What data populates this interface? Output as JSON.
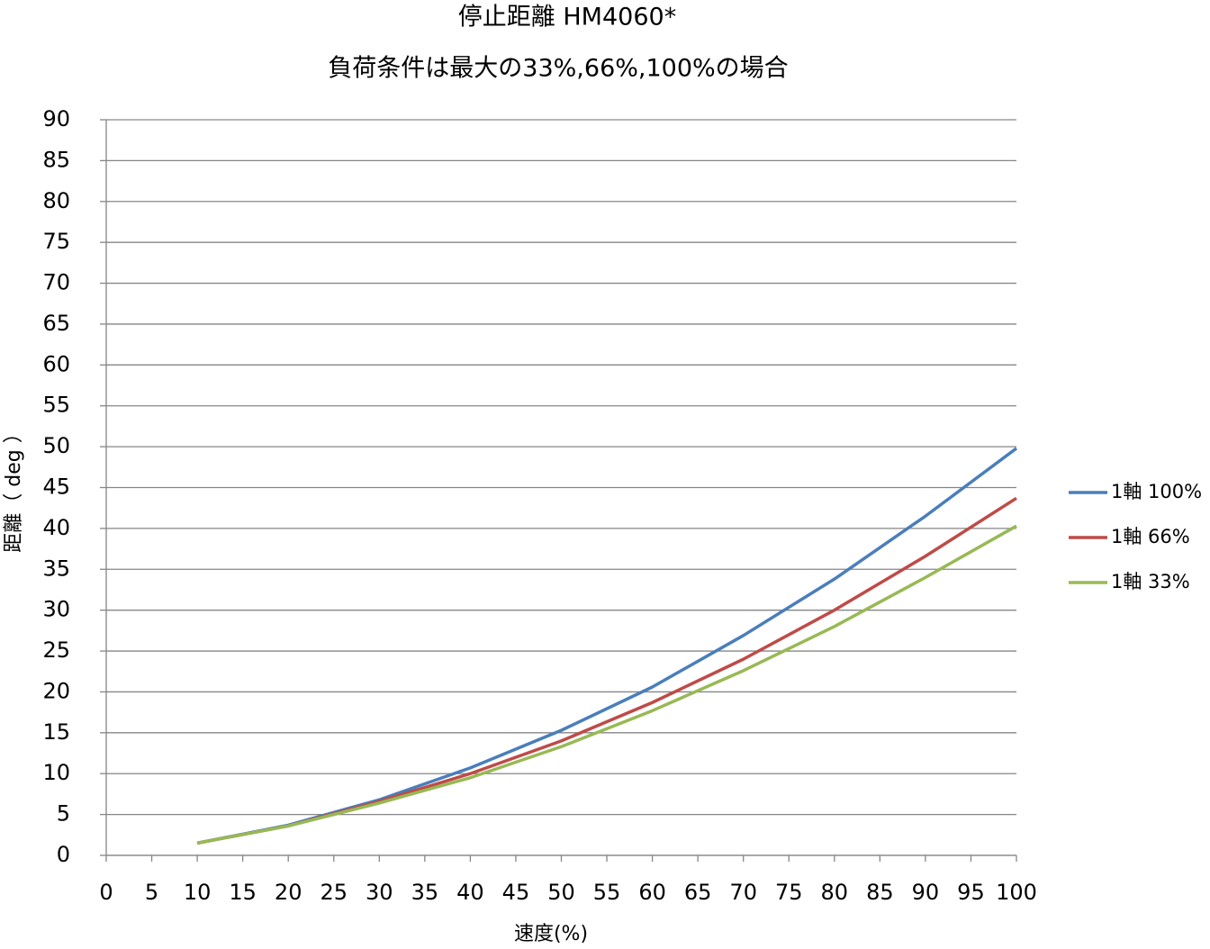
{
  "chart_data": {
    "type": "line",
    "title": "停止距離 HM4060*",
    "subtitle": "負荷条件は最大の33%,66%,100%の場合",
    "x_label": "速度(%)",
    "y_label": "距離（ deg ）",
    "x": [
      10,
      20,
      30,
      40,
      50,
      60,
      70,
      80,
      90,
      100
    ],
    "series": [
      {
        "name": "1軸 100%",
        "color": "#4a7ebb",
        "values": [
          1.5,
          3.7,
          6.8,
          10.7,
          15.3,
          20.6,
          26.9,
          33.8,
          41.5,
          49.8
        ]
      },
      {
        "name": "1軸 66%",
        "color": "#be4b48",
        "values": [
          1.5,
          3.6,
          6.6,
          10.0,
          14.0,
          18.7,
          24.0,
          30.0,
          36.6,
          43.7
        ]
      },
      {
        "name": "1軸 33%",
        "color": "#98b954",
        "values": [
          1.5,
          3.6,
          6.4,
          9.5,
          13.3,
          17.7,
          22.6,
          28.0,
          34.0,
          40.3
        ]
      }
    ],
    "xlim": [
      0,
      100
    ],
    "xticks": [
      0,
      5,
      10,
      15,
      20,
      25,
      30,
      35,
      40,
      45,
      50,
      55,
      60,
      65,
      70,
      75,
      80,
      85,
      90,
      95,
      100
    ],
    "ylim": [
      0,
      90
    ],
    "yticks": [
      0,
      5,
      10,
      15,
      20,
      25,
      30,
      35,
      40,
      45,
      50,
      55,
      60,
      65,
      70,
      75,
      80,
      85,
      90
    ],
    "grid": true,
    "legend": "right"
  }
}
